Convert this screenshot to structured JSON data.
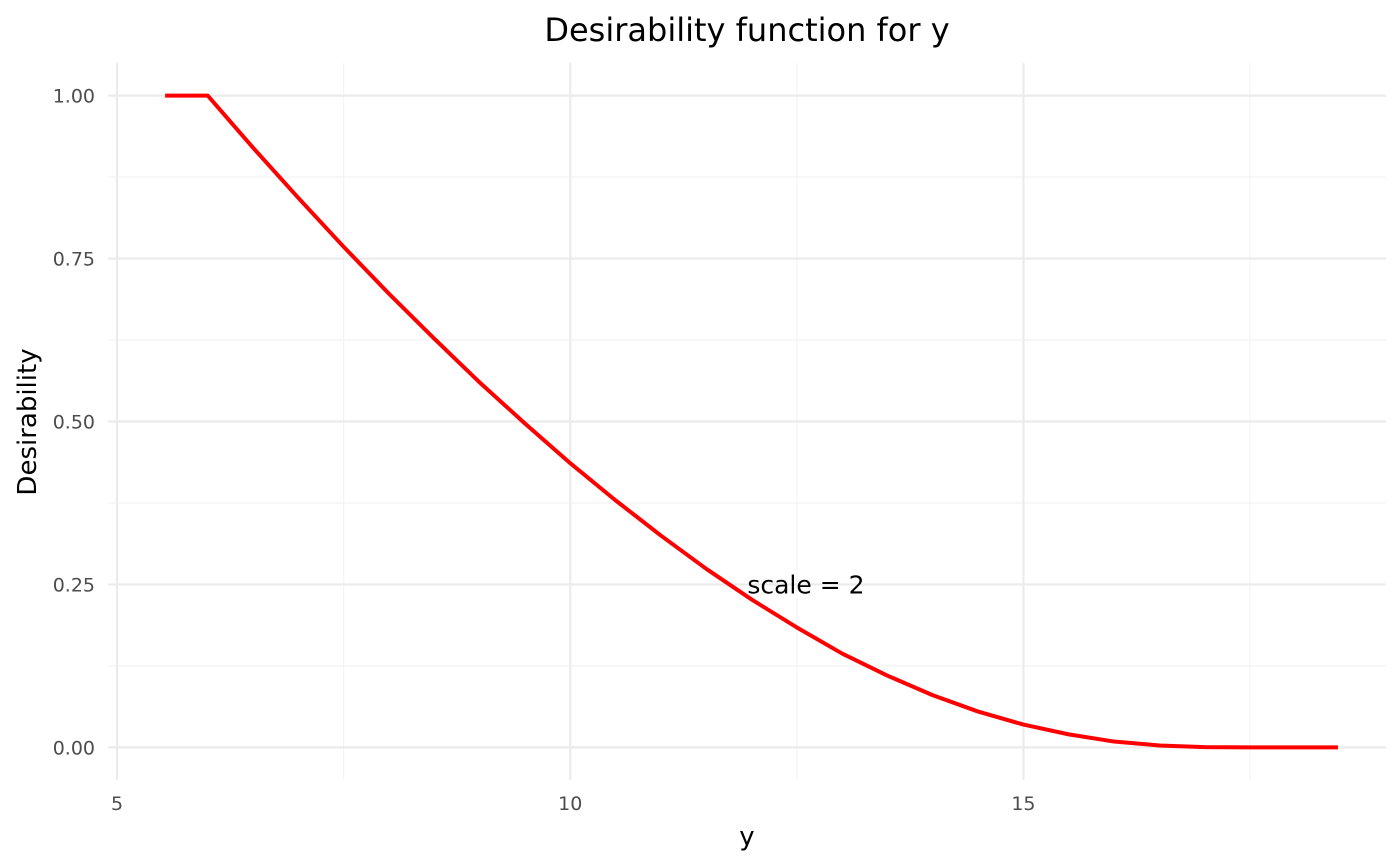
{
  "chart_data": {
    "type": "line",
    "title": "Desirability function for y",
    "xlabel": "y",
    "ylabel": "Desirability",
    "xlim": [
      4.9,
      19.0
    ],
    "ylim": [
      -0.05,
      1.05
    ],
    "x_ticks": [
      5,
      10,
      15
    ],
    "x_tick_labels": [
      "5",
      "10",
      "15"
    ],
    "x_minor_ticks": [
      7.5,
      12.5,
      17.5
    ],
    "y_ticks": [
      0,
      0.25,
      0.5,
      0.75,
      1.0
    ],
    "y_tick_labels": [
      "0.00",
      "0.25",
      "0.50",
      "0.75",
      "1.00"
    ],
    "y_minor_ticks": [
      0.125,
      0.375,
      0.625,
      0.875
    ],
    "grid": true,
    "series": [
      {
        "color": "#ff0000",
        "x": [
          5.53,
          6.0,
          6.5,
          7.0,
          7.5,
          8.0,
          8.5,
          9.0,
          9.5,
          10.0,
          10.5,
          11.0,
          11.5,
          12.0,
          12.5,
          13.0,
          13.5,
          14.0,
          14.5,
          15.0,
          15.5,
          16.0,
          16.5,
          17.0,
          17.5,
          18.0,
          18.47
        ],
        "y": [
          1.0,
          1.0,
          0.92,
          0.843,
          0.768,
          0.696,
          0.627,
          0.56,
          0.497,
          0.436,
          0.379,
          0.325,
          0.274,
          0.227,
          0.184,
          0.144,
          0.11,
          0.08,
          0.055,
          0.035,
          0.02,
          0.009,
          0.003,
          0.0005,
          0.0,
          0.0,
          0.0
        ]
      }
    ],
    "annotations": [
      {
        "text": "scale = 2",
        "x": 12.6,
        "y": 0.25
      }
    ]
  }
}
